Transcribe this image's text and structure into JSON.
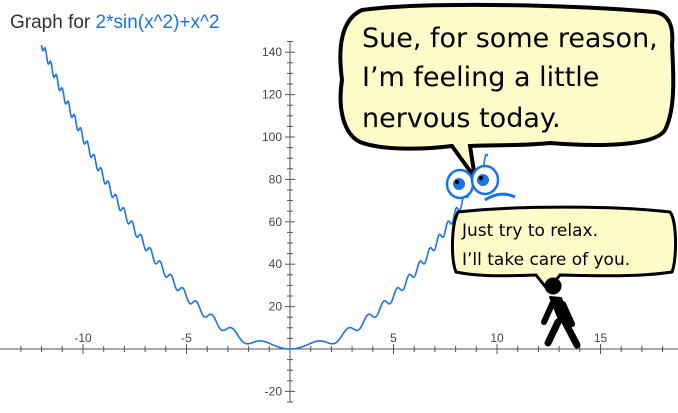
{
  "header": {
    "prefix": "Graph for",
    "function": "2*sin(x^2)+x^2"
  },
  "chart_data": {
    "type": "line",
    "title": "Graph for 2*sin(x^2)+x^2",
    "function": "2*sin(x^2)+x^2",
    "xlabel": "",
    "ylabel": "",
    "xlim": [
      -13.6,
      18
    ],
    "ylim": [
      -25,
      145
    ],
    "x_ticks": [
      -10,
      -5,
      5,
      10,
      15
    ],
    "y_ticks": [
      -20,
      20,
      40,
      60,
      80,
      100,
      120,
      140
    ],
    "x_minor_step": 1,
    "y_minor_step": 5,
    "grid": false,
    "line_color": "#1a73e8",
    "series": [
      {
        "color": "#1a73e8",
        "x": [
          -12,
          -11,
          -10,
          -9,
          -8,
          -7,
          -6,
          -5,
          -4,
          -3,
          -2,
          -1,
          0,
          1,
          2,
          3,
          4,
          5,
          6,
          7,
          8,
          9,
          9.5
        ],
        "y": [
          143.5,
          120.2,
          98.3,
          81.6,
          65.8,
          47.1,
          34.0,
          24.7,
          15.4,
          9.8,
          2.5,
          2.7,
          0,
          2.7,
          2.5,
          9.8,
          15.4,
          24.7,
          34.0,
          47.1,
          65.8,
          81.6,
          91.6
        ]
      }
    ]
  },
  "comic": {
    "bubble1": {
      "lines": [
        "Sue, for some reason,",
        "I’m feeling a little",
        "nervous today."
      ],
      "fill": "#fffbc9"
    },
    "bubble2": {
      "lines": [
        "Just try to relax.",
        "I’ll take care of you."
      ],
      "fill": "#fffbc9"
    },
    "character_icon": "googly-eyes-icon",
    "walker_icon": "walking-person-icon"
  }
}
